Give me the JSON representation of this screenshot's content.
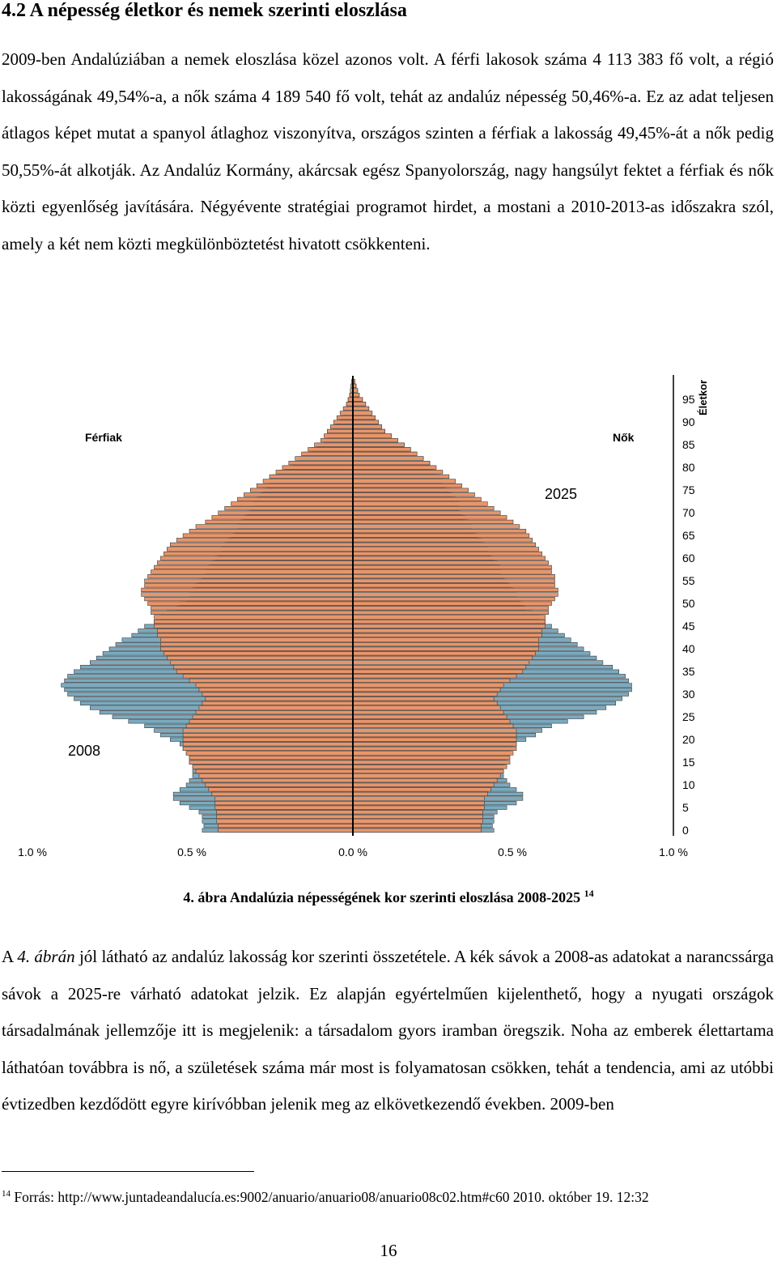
{
  "heading": "4.2 A népesség életkor és nemek szerinti eloszlása",
  "para1": "2009-ben Andalúziában a nemek eloszlása közel azonos volt. A férfi lakosok száma 4 113 383 fő volt, a régió lakosságának 49,54%-a, a nők száma 4 189 540 fő volt, tehát az andalúz népesség 50,46%-a. Ez az adat teljesen átlagos képet mutat a spanyol átlaghoz viszonyítva, országos szinten a férfiak a lakosság 49,45%-át a nők pedig 50,55%-át alkotják. Az Andalúz Kormány, akárcsak egész Spanyolország, nagy hangsúlyt fektet a férfiak és nők közti egyenlőség javítására. Négyévente stratégiai programot hirdet, a mostani a 2010-2013-as időszakra szól, amely a két nem közti megkülönböztetést hivatott csökkenteni.",
  "chart_data": {
    "type": "bar",
    "orientation": "horizontal-population-pyramid",
    "male_label": "Férfiak",
    "female_label": "Nők",
    "y_axis_label": "Életkor",
    "x_ticks": [
      "1.0 %",
      "0.5 %",
      "0.0 %",
      "0.5 %",
      "1.0 %"
    ],
    "y_ticks": [
      "0",
      "5",
      "10",
      "15",
      "20",
      "25",
      "30",
      "35",
      "40",
      "45",
      "50",
      "55",
      "60",
      "65",
      "70",
      "75",
      "80",
      "85",
      "90",
      "95"
    ],
    "xlim": [
      -1.0,
      1.0
    ],
    "ylim": [
      0,
      99
    ],
    "series": [
      {
        "name": "2008",
        "color": "#7aaabf",
        "note": "shares in % of total population, single-year ages 0-99",
        "male": [
          0.47,
          0.465,
          0.47,
          0.47,
          0.48,
          0.51,
          0.54,
          0.56,
          0.56,
          0.54,
          0.52,
          0.51,
          0.5,
          0.5,
          0.5,
          0.51,
          0.51,
          0.52,
          0.53,
          0.54,
          0.57,
          0.6,
          0.62,
          0.65,
          0.7,
          0.75,
          0.79,
          0.82,
          0.85,
          0.87,
          0.89,
          0.9,
          0.91,
          0.9,
          0.89,
          0.87,
          0.85,
          0.82,
          0.8,
          0.78,
          0.76,
          0.74,
          0.72,
          0.69,
          0.67,
          0.65,
          0.62,
          0.6,
          0.58,
          0.55,
          0.54,
          0.52,
          0.51,
          0.5,
          0.49,
          0.48,
          0.47,
          0.46,
          0.45,
          0.44,
          0.43,
          0.42,
          0.41,
          0.4,
          0.39,
          0.38,
          0.37,
          0.36,
          0.35,
          0.34,
          0.33,
          0.32,
          0.31,
          0.3,
          0.29,
          0.28,
          0.27,
          0.26,
          0.25,
          0.23,
          0.21,
          0.19,
          0.17,
          0.15,
          0.13,
          0.11,
          0.09,
          0.08,
          0.07,
          0.06,
          0.05,
          0.04,
          0.03,
          0.025,
          0.02,
          0.015,
          0.01,
          0.008,
          0.006,
          0.004
        ],
        "female": [
          0.44,
          0.435,
          0.44,
          0.44,
          0.45,
          0.48,
          0.51,
          0.53,
          0.53,
          0.51,
          0.49,
          0.48,
          0.47,
          0.47,
          0.47,
          0.48,
          0.48,
          0.49,
          0.5,
          0.51,
          0.54,
          0.57,
          0.59,
          0.62,
          0.67,
          0.72,
          0.76,
          0.79,
          0.82,
          0.84,
          0.86,
          0.87,
          0.87,
          0.86,
          0.85,
          0.83,
          0.81,
          0.78,
          0.76,
          0.74,
          0.72,
          0.7,
          0.68,
          0.66,
          0.64,
          0.62,
          0.6,
          0.58,
          0.56,
          0.54,
          0.53,
          0.52,
          0.51,
          0.5,
          0.49,
          0.48,
          0.47,
          0.46,
          0.46,
          0.45,
          0.44,
          0.43,
          0.42,
          0.41,
          0.4,
          0.39,
          0.38,
          0.37,
          0.36,
          0.35,
          0.34,
          0.33,
          0.33,
          0.32,
          0.31,
          0.3,
          0.29,
          0.28,
          0.27,
          0.26,
          0.25,
          0.24,
          0.22,
          0.2,
          0.18,
          0.16,
          0.14,
          0.12,
          0.1,
          0.09,
          0.08,
          0.07,
          0.06,
          0.05,
          0.04,
          0.03,
          0.02,
          0.015,
          0.01,
          0.006
        ]
      },
      {
        "name": "2025",
        "color": "#e8956a",
        "note": "shares in % of total population, single-year ages 0-99",
        "male": [
          0.42,
          0.42,
          0.425,
          0.425,
          0.425,
          0.43,
          0.43,
          0.43,
          0.44,
          0.45,
          0.46,
          0.47,
          0.48,
          0.49,
          0.5,
          0.51,
          0.51,
          0.52,
          0.53,
          0.53,
          0.53,
          0.53,
          0.53,
          0.52,
          0.51,
          0.5,
          0.49,
          0.48,
          0.47,
          0.46,
          0.47,
          0.48,
          0.49,
          0.51,
          0.53,
          0.55,
          0.56,
          0.57,
          0.58,
          0.59,
          0.6,
          0.6,
          0.6,
          0.61,
          0.61,
          0.62,
          0.62,
          0.62,
          0.63,
          0.63,
          0.64,
          0.65,
          0.66,
          0.66,
          0.65,
          0.65,
          0.64,
          0.63,
          0.62,
          0.61,
          0.6,
          0.59,
          0.58,
          0.57,
          0.55,
          0.53,
          0.51,
          0.49,
          0.46,
          0.44,
          0.42,
          0.4,
          0.38,
          0.36,
          0.34,
          0.32,
          0.3,
          0.28,
          0.26,
          0.24,
          0.22,
          0.2,
          0.18,
          0.16,
          0.14,
          0.12,
          0.1,
          0.09,
          0.08,
          0.07,
          0.06,
          0.05,
          0.04,
          0.03,
          0.02,
          0.015,
          0.01,
          0.008,
          0.006,
          0.004
        ],
        "female": [
          0.4,
          0.4,
          0.405,
          0.405,
          0.405,
          0.41,
          0.41,
          0.41,
          0.42,
          0.43,
          0.44,
          0.45,
          0.46,
          0.47,
          0.48,
          0.49,
          0.49,
          0.5,
          0.51,
          0.51,
          0.51,
          0.51,
          0.51,
          0.5,
          0.49,
          0.48,
          0.47,
          0.46,
          0.45,
          0.44,
          0.45,
          0.46,
          0.47,
          0.49,
          0.51,
          0.53,
          0.54,
          0.55,
          0.56,
          0.57,
          0.58,
          0.58,
          0.58,
          0.59,
          0.59,
          0.6,
          0.6,
          0.6,
          0.61,
          0.61,
          0.62,
          0.63,
          0.64,
          0.64,
          0.63,
          0.63,
          0.63,
          0.62,
          0.62,
          0.61,
          0.6,
          0.59,
          0.58,
          0.57,
          0.56,
          0.55,
          0.54,
          0.52,
          0.5,
          0.48,
          0.46,
          0.44,
          0.42,
          0.4,
          0.38,
          0.36,
          0.34,
          0.32,
          0.3,
          0.28,
          0.26,
          0.24,
          0.22,
          0.2,
          0.18,
          0.16,
          0.14,
          0.12,
          0.1,
          0.09,
          0.08,
          0.07,
          0.06,
          0.05,
          0.04,
          0.03,
          0.02,
          0.015,
          0.01,
          0.006
        ]
      }
    ]
  },
  "caption": {
    "text": "4. ábra Andalúzia népességének kor szerinti eloszlása 2008-2025",
    "footnote_ref": "14"
  },
  "para2": {
    "prefix": "A ",
    "ref": "4. ábrán",
    "rest": " jól látható az andalúz lakosság kor szerinti összetétele. A kék sávok a 2008-as adatokat a narancssárga sávok a 2025-re várható adatokat jelzik. Ez alapján egyértelműen kijelenthető, hogy a nyugati országok társadalmának jellemzője itt is megjelenik: a társadalom gyors iramban öregszik. Noha az emberek élettartama láthatóan továbbra is nő, a születések száma már most is folyamatosan csökken, tehát a tendencia, ami az utóbbi évtizedben kezdődött egyre kirívóbban jelenik meg az elkövetkezendő években. 2009-ben"
  },
  "footnote": {
    "number": "14",
    "text": " Forrás: http://www.juntadeandalucía.es:9002/anuario/anuario08/anuario08c02.htm#c60 2010. október 19. 12:32"
  },
  "page_number": "16"
}
